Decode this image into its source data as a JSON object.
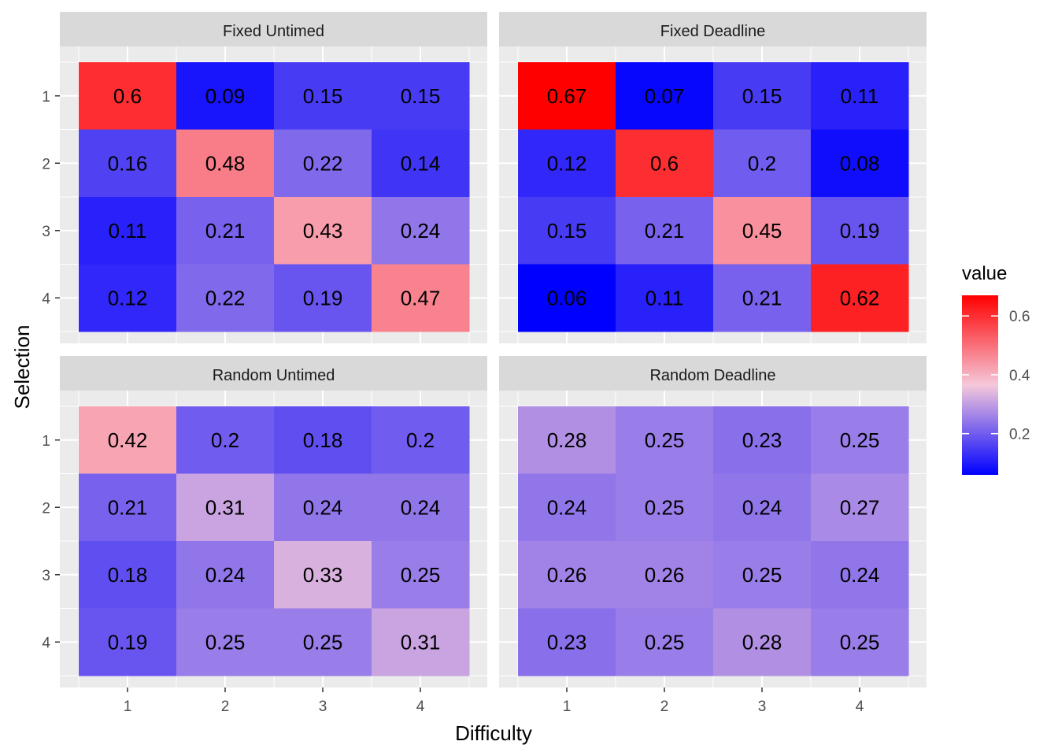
{
  "chart_data": {
    "type": "heatmap",
    "xlabel": "Difficulty",
    "ylabel": "Selection",
    "x_categories": [
      "1",
      "2",
      "3",
      "4"
    ],
    "y_categories": [
      "1",
      "2",
      "3",
      "4"
    ],
    "legend": {
      "title": "value",
      "breaks": [
        "0.2",
        "0.4",
        "0.6"
      ],
      "break_values": [
        0.2,
        0.4,
        0.6
      ],
      "range": [
        0.06,
        0.67
      ],
      "placement": "right"
    },
    "colors": {
      "low": "#0000FF",
      "mid": "#F5C8DA",
      "high": "#FF0000",
      "midpoint": 0.365
    },
    "grid": true,
    "facets": [
      {
        "title": "Fixed Untimed",
        "values": [
          [
            "0.6",
            "0.09",
            "0.15",
            "0.15"
          ],
          [
            "0.16",
            "0.48",
            "0.22",
            "0.14"
          ],
          [
            "0.11",
            "0.21",
            "0.43",
            "0.24"
          ],
          [
            "0.12",
            "0.22",
            "0.19",
            "0.47"
          ]
        ]
      },
      {
        "title": "Fixed Deadline",
        "values": [
          [
            "0.67",
            "0.07",
            "0.15",
            "0.11"
          ],
          [
            "0.12",
            "0.6",
            "0.2",
            "0.08"
          ],
          [
            "0.15",
            "0.21",
            "0.45",
            "0.19"
          ],
          [
            "0.06",
            "0.11",
            "0.21",
            "0.62"
          ]
        ]
      },
      {
        "title": "Random Untimed",
        "values": [
          [
            "0.42",
            "0.2",
            "0.18",
            "0.2"
          ],
          [
            "0.21",
            "0.31",
            "0.24",
            "0.24"
          ],
          [
            "0.18",
            "0.24",
            "0.33",
            "0.25"
          ],
          [
            "0.19",
            "0.25",
            "0.25",
            "0.31"
          ]
        ]
      },
      {
        "title": "Random Deadline",
        "values": [
          [
            "0.28",
            "0.25",
            "0.23",
            "0.25"
          ],
          [
            "0.24",
            "0.25",
            "0.24",
            "0.27"
          ],
          [
            "0.26",
            "0.26",
            "0.25",
            "0.24"
          ],
          [
            "0.23",
            "0.25",
            "0.28",
            "0.25"
          ]
        ]
      }
    ]
  }
}
